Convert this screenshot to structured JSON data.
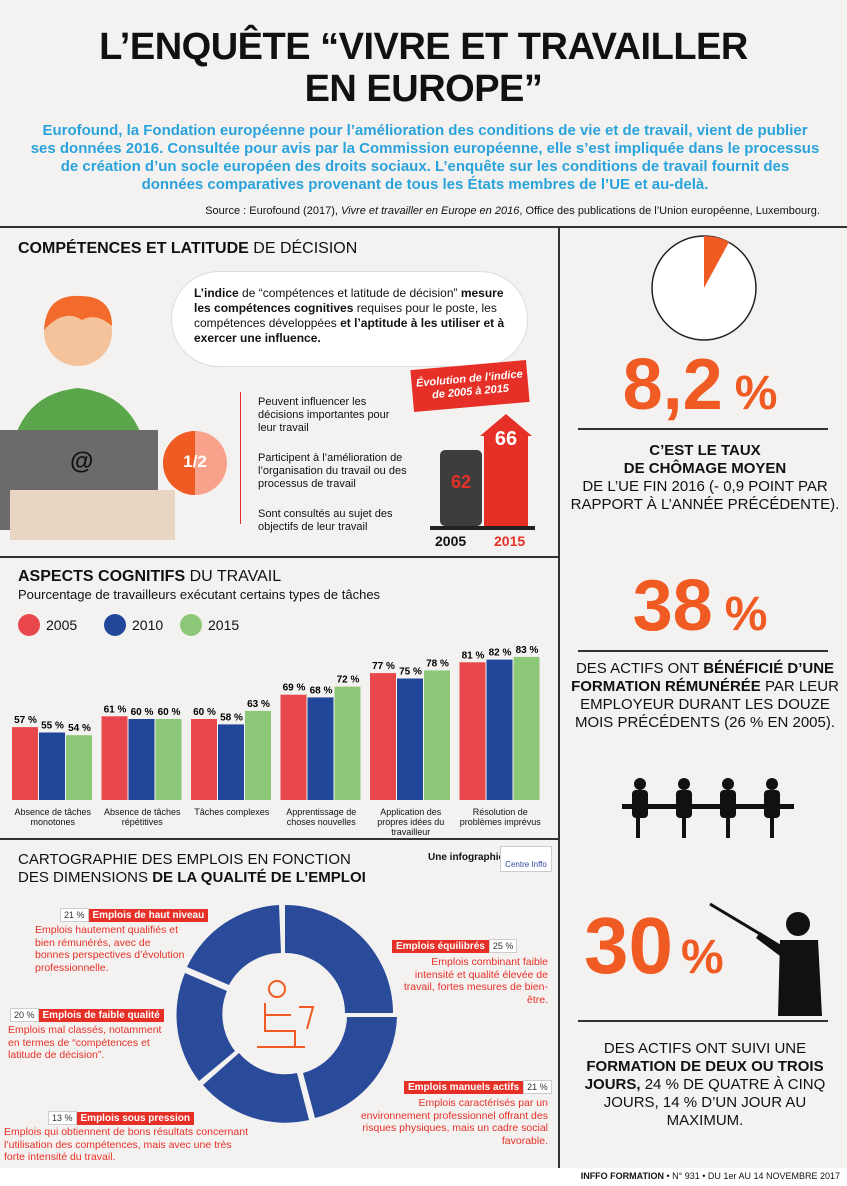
{
  "title_l1": "L’ENQUÊTE “VIVRE ET TRAVAILLER",
  "title_l2": "EN EUROPE”",
  "intro": "Eurofound, la Fondation européenne pour l’amélioration des conditions de vie et de travail, vient de publier ses données 2016. Consultée pour avis par la Commission européenne, elle s’est impliquée dans le processus de création d’un socle européen des droits sociaux. L’enquête sur les conditions de travail fournit des données comparatives provenant de tous les États membres de l’UE et au-delà.",
  "source_a": "Source : Eurofound (2017), ",
  "source_b": "Vivre et travailler en Europe en 2016",
  "source_c": ", Office des publications de l’Union européenne, Luxembourg.",
  "sec1": {
    "bold": "COMPÉTENCES ET LATITUDE",
    "light": " DE DÉCISION"
  },
  "bubble": {
    "b1": "L’indice",
    "t1": " de “compétences et latitude de décision” ",
    "b2": "mesure les compétences cognitives",
    "t2": " requises pour le poste, les compétences développées ",
    "b3": "et l’aptitude à les utiliser et à exercer une influence."
  },
  "half": "1/2",
  "at": "@",
  "bullets": [
    "Peuvent influencer les décisions importantes pour leur travail",
    "Participent à l’amélioration de l’organisation du travail ou des processus de travail",
    "Sont consultés au sujet des objectifs de leur travail"
  ],
  "evo": "Évolution de l’indice de 2005 à 2015",
  "idx": {
    "v2005": "62",
    "v2015": "66",
    "y2005": "2005",
    "y2015": "2015"
  },
  "sec2": {
    "bold": "ASPECTS COGNITIFS",
    "light": " DU TRAVAIL",
    "sub": "Pourcentage de travailleurs exécutant certains types de tâches"
  },
  "colors": {
    "y2005": "#e8474c",
    "y2010": "#22479a",
    "y2015": "#8cc878",
    "orange": "#f05a23",
    "navy": "#2a4a9a"
  },
  "chart_data": {
    "type": "bar",
    "categories": [
      "Absence de tâches monotones",
      "Absence de tâches répétitives",
      "Tâches complexes",
      "Apprentissage de choses nouvelles",
      "Application des propres idées du travailleur",
      "Résolution de problèmes imprévus"
    ],
    "series": [
      {
        "name": "2005",
        "values": [
          57,
          61,
          60,
          69,
          77,
          81
        ]
      },
      {
        "name": "2010",
        "values": [
          55,
          60,
          58,
          68,
          75,
          82
        ]
      },
      {
        "name": "2015",
        "values": [
          54,
          60,
          63,
          72,
          78,
          83
        ]
      }
    ],
    "unit": " %"
  },
  "sec3": {
    "l1": "CARTOGRAPHIE DES EMPLOIS EN FONCTION",
    "l2a": "DES DIMENSIONS ",
    "l2b": "DE LA QUALITÉ DE L’EMPLOI"
  },
  "infographie": "Une infographie",
  "centre": "Centre Inffo",
  "jobs": [
    {
      "pct": "21 %",
      "name": "Emplois de haut niveau",
      "desc": "Emplois hautement qualifiés et bien rémunérés, avec de bonnes perspectives d’évolution professionnelle."
    },
    {
      "pct": "25 %",
      "name": "Emplois équilibrés",
      "desc": "Emplois combinant faible intensité et qualité élevée de travail, fortes mesures de bien-être."
    },
    {
      "pct": "20 %",
      "name": "Emplois de faible qualité",
      "desc": "Emplois mal classés, notamment en termes de “compétences et latitude de décision”."
    },
    {
      "pct": "21 %",
      "name": "Emplois manuels actifs",
      "desc": "Emplois caractérisés par un environnement professionnel offrant des risques physiques, mais un cadre social favorable."
    },
    {
      "pct": "13 %",
      "name": "Emplois sous pression",
      "desc": "Emplois qui obtiennent de bons résultats concernant l’utilisation des compétences, mais avec une très forte intensité du travail."
    }
  ],
  "stat1": {
    "num": "8,2",
    "pct": "%",
    "t1": "C’EST LE TAUX",
    "t2": "DE CHÔMAGE MOYEN",
    "t3": "DE L’UE FIN 2016 (- 0,9 POINT PAR RAPPORT À L’ANNÉE PRÉCÉDENTE)."
  },
  "stat2": {
    "num": "38",
    "pct": "%",
    "t1": "DES ACTIFS ONT ",
    "b1": "BÉNÉFICIÉ D’UNE FORMATION RÉMUNÉRÉE",
    "t2": " PAR LEUR EMPLOYEUR DURANT LES DOUZE MOIS PRÉCÉDENTS (26 % EN 2005)."
  },
  "stat3": {
    "num": "30",
    "pct": "%",
    "t1": "DES ACTIFS ONT SUIVI UNE ",
    "b1": "FORMATION DE DEUX OU TROIS JOURS,",
    "t2": " 24 % DE QUATRE À CINQ JOURS, 14 % D’UN JOUR AU MAXIMUM."
  },
  "footer": {
    "b": "INFFO FORMATION",
    "t": " • N° 931 • DU 1er AU 14 NOVEMBRE 2017"
  }
}
